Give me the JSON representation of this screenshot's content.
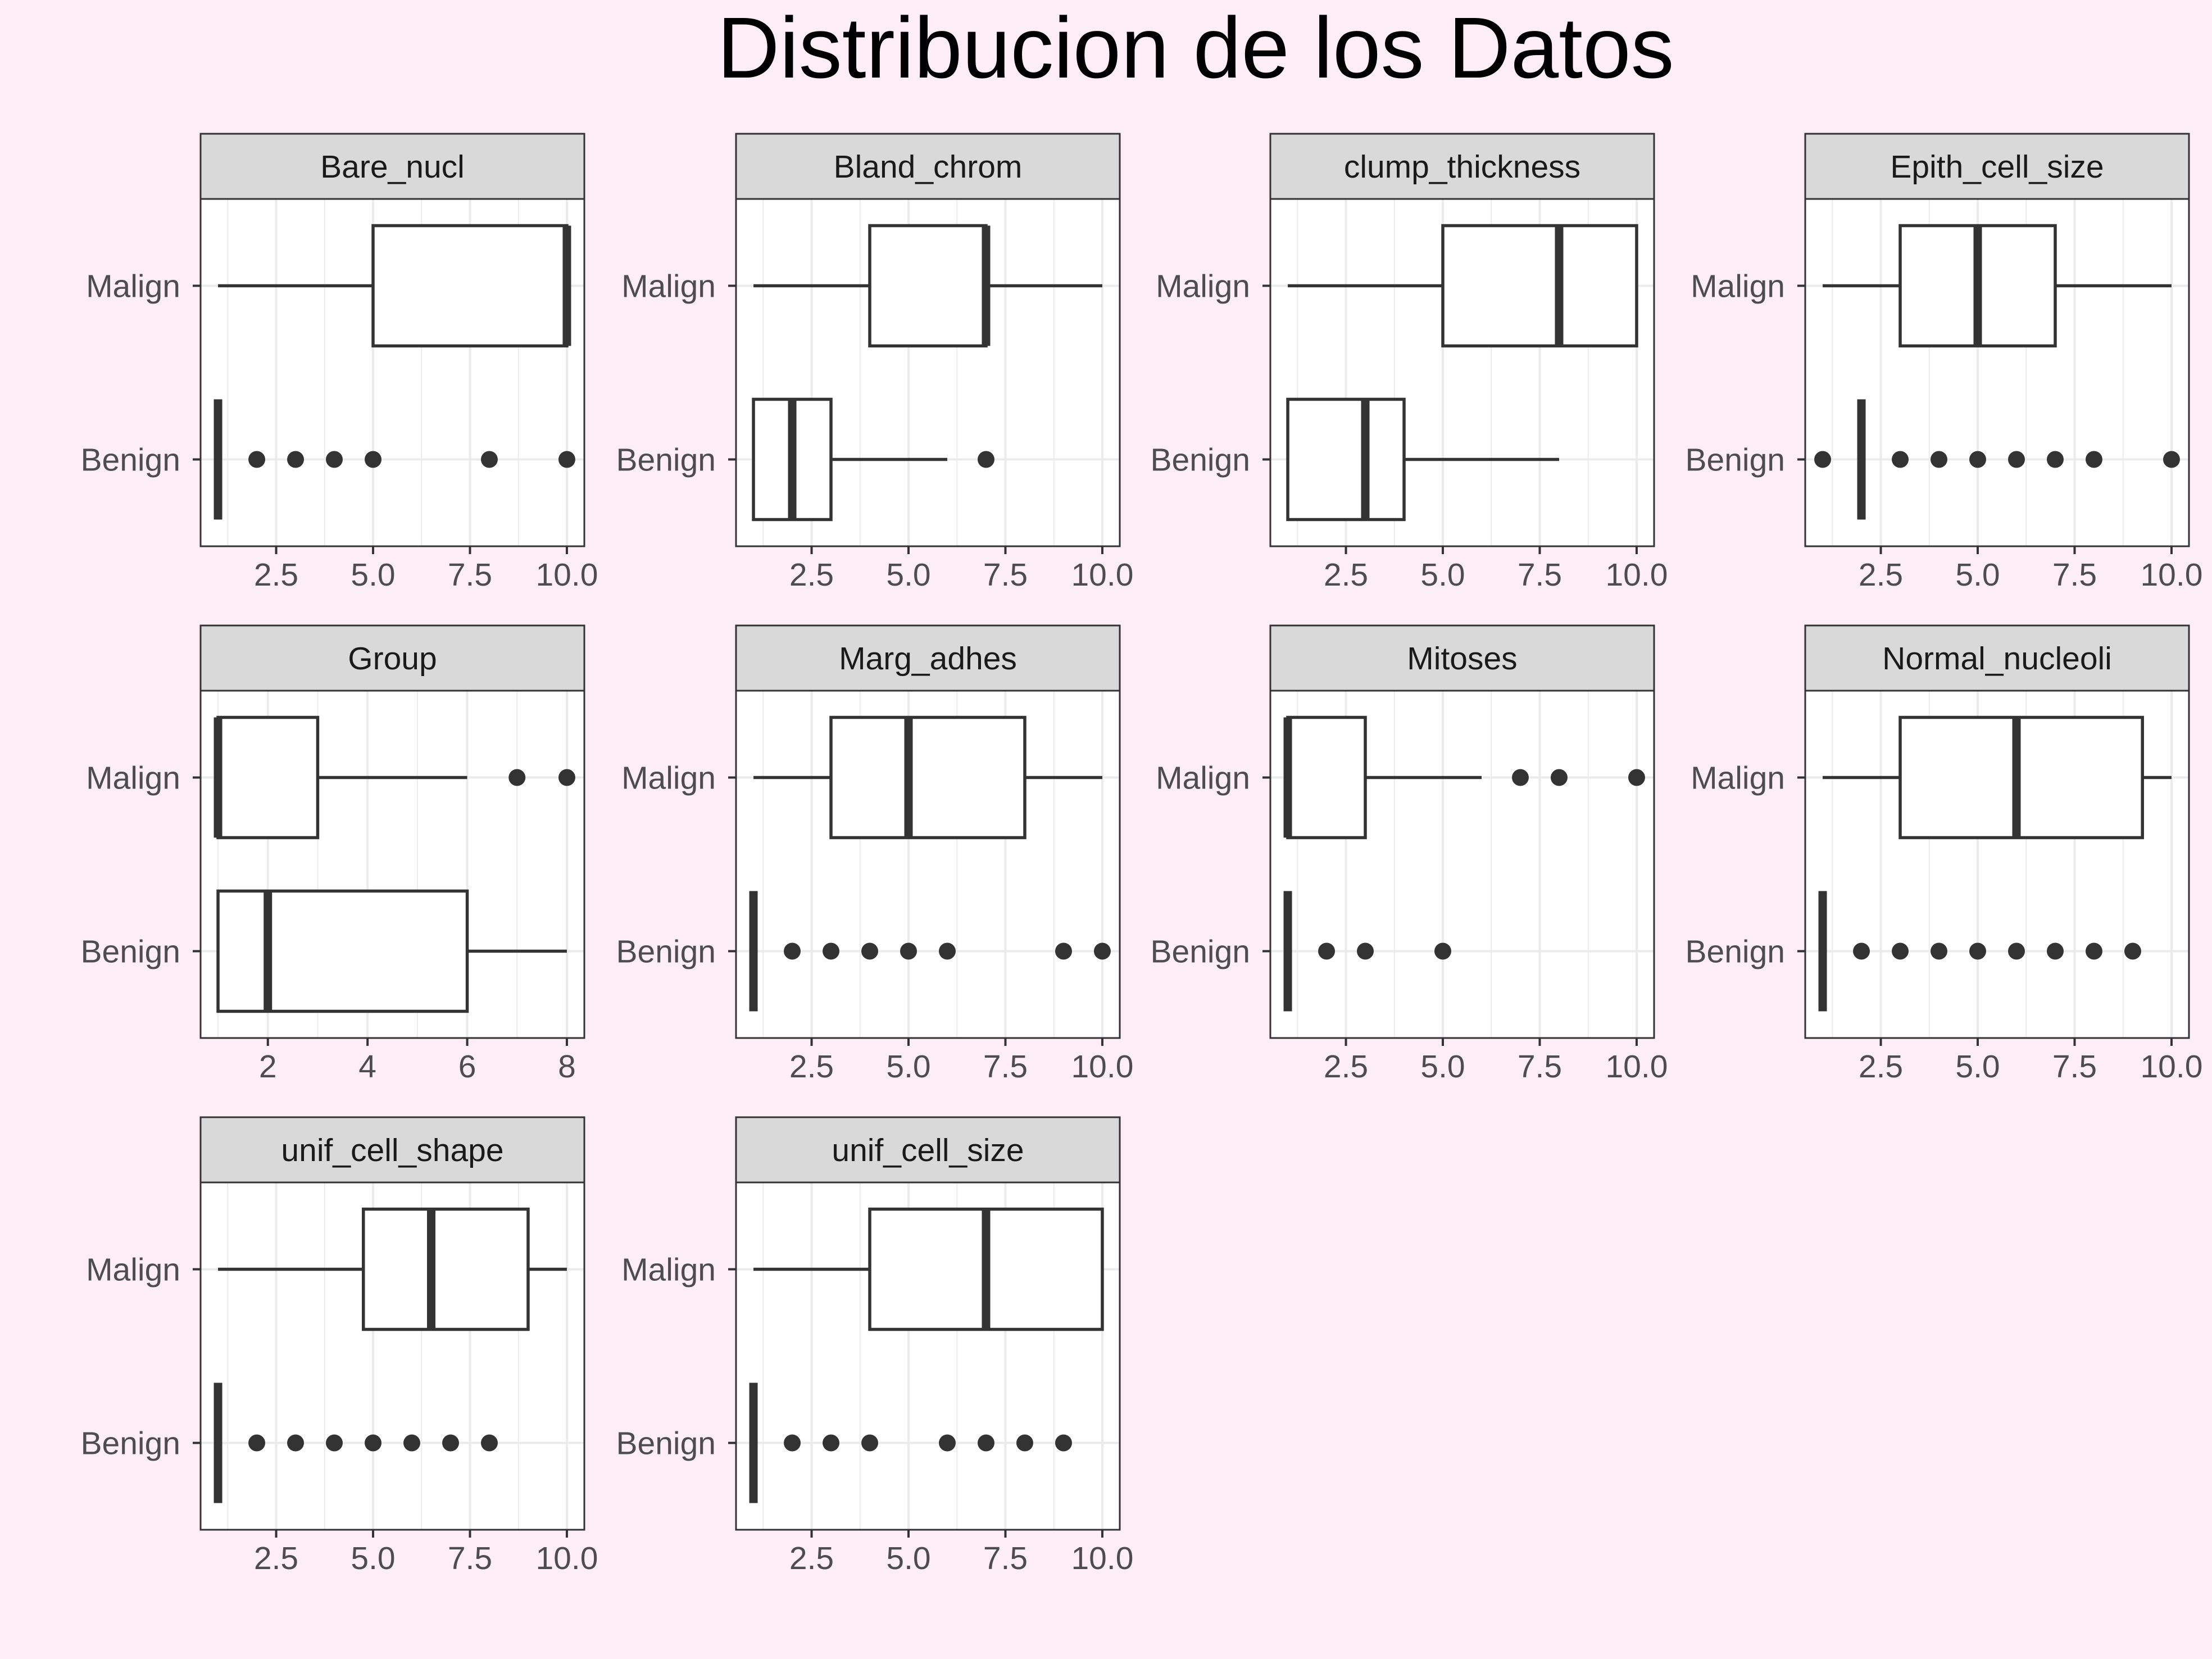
{
  "colors": {
    "background": "#fdeef5",
    "panel_background": "#ffffff",
    "strip_background": "#d9d9d9",
    "strip_border": "#333333",
    "panel_border": "#333333",
    "grid": "#ebebeb",
    "box_line": "#333333",
    "outlier": "#333333",
    "text": "#4d4d4d",
    "strip_text": "#1a1a1a",
    "title": "#000000"
  },
  "chart_data": {
    "type": "boxplot",
    "title": "Distribucion de los Datos",
    "layout": "facet grid, 4 columns x 3 rows, free x scales",
    "orientation": "horizontal",
    "categories": [
      "Malign",
      "Benign"
    ],
    "panels": [
      {
        "name": "Bare_nucl",
        "xlim": [
          0.55,
          10.45
        ],
        "xticks": [
          2.5,
          5.0,
          7.5,
          10.0
        ],
        "xtick_labels": [
          "2.5",
          "5.0",
          "7.5",
          "10.0"
        ],
        "boxes": [
          {
            "group": "Malign",
            "min": 1,
            "q1": 5,
            "median": 10,
            "q3": 10,
            "max": 10,
            "outliers": []
          },
          {
            "group": "Benign",
            "min": 1,
            "q1": 1,
            "median": 1,
            "q3": 1,
            "max": 1,
            "outliers": [
              2,
              3,
              4,
              5,
              8,
              10
            ]
          }
        ]
      },
      {
        "name": "Bland_chrom",
        "xlim": [
          0.55,
          10.45
        ],
        "xticks": [
          2.5,
          5.0,
          7.5,
          10.0
        ],
        "xtick_labels": [
          "2.5",
          "5.0",
          "7.5",
          "10.0"
        ],
        "boxes": [
          {
            "group": "Malign",
            "min": 1,
            "q1": 4,
            "median": 7,
            "q3": 7,
            "max": 10,
            "outliers": []
          },
          {
            "group": "Benign",
            "min": 1,
            "q1": 1,
            "median": 2,
            "q3": 3,
            "max": 6,
            "outliers": [
              7
            ]
          }
        ]
      },
      {
        "name": "clump_thickness",
        "xlim": [
          0.55,
          10.45
        ],
        "xticks": [
          2.5,
          5.0,
          7.5,
          10.0
        ],
        "xtick_labels": [
          "2.5",
          "5.0",
          "7.5",
          "10.0"
        ],
        "boxes": [
          {
            "group": "Malign",
            "min": 1,
            "q1": 5,
            "median": 8,
            "q3": 10,
            "max": 10,
            "outliers": []
          },
          {
            "group": "Benign",
            "min": 1,
            "q1": 1,
            "median": 3,
            "q3": 4,
            "max": 8,
            "outliers": []
          }
        ]
      },
      {
        "name": "Epith_cell_size",
        "xlim": [
          0.55,
          10.45
        ],
        "xticks": [
          2.5,
          5.0,
          7.5,
          10.0
        ],
        "xtick_labels": [
          "2.5",
          "5.0",
          "7.5",
          "10.0"
        ],
        "boxes": [
          {
            "group": "Malign",
            "min": 1,
            "q1": 3,
            "median": 5,
            "q3": 7,
            "max": 10,
            "outliers": []
          },
          {
            "group": "Benign",
            "min": 2,
            "q1": 2,
            "median": 2,
            "q3": 2,
            "max": 2,
            "outliers": [
              1,
              3,
              4,
              5,
              6,
              7,
              8,
              10
            ]
          }
        ]
      },
      {
        "name": "Group",
        "xlim": [
          0.65,
          8.35
        ],
        "xticks": [
          2,
          4,
          6,
          8
        ],
        "xtick_labels": [
          "2",
          "4",
          "6",
          "8"
        ],
        "boxes": [
          {
            "group": "Malign",
            "min": 1,
            "q1": 1,
            "median": 1,
            "q3": 3,
            "max": 6,
            "outliers": [
              7,
              8
            ]
          },
          {
            "group": "Benign",
            "min": 1,
            "q1": 1,
            "median": 2,
            "q3": 6,
            "max": 8,
            "outliers": []
          }
        ]
      },
      {
        "name": "Marg_adhes",
        "xlim": [
          0.55,
          10.45
        ],
        "xticks": [
          2.5,
          5.0,
          7.5,
          10.0
        ],
        "xtick_labels": [
          "2.5",
          "5.0",
          "7.5",
          "10.0"
        ],
        "boxes": [
          {
            "group": "Malign",
            "min": 1,
            "q1": 3,
            "median": 5,
            "q3": 8,
            "max": 10,
            "outliers": []
          },
          {
            "group": "Benign",
            "min": 1,
            "q1": 1,
            "median": 1,
            "q3": 1,
            "max": 1,
            "outliers": [
              2,
              3,
              4,
              5,
              6,
              9,
              10
            ]
          }
        ]
      },
      {
        "name": "Mitoses",
        "xlim": [
          0.55,
          10.45
        ],
        "xticks": [
          2.5,
          5.0,
          7.5,
          10.0
        ],
        "xtick_labels": [
          "2.5",
          "5.0",
          "7.5",
          "10.0"
        ],
        "boxes": [
          {
            "group": "Malign",
            "min": 1,
            "q1": 1,
            "median": 1,
            "q3": 3,
            "max": 6,
            "outliers": [
              7,
              8,
              10
            ]
          },
          {
            "group": "Benign",
            "min": 1,
            "q1": 1,
            "median": 1,
            "q3": 1,
            "max": 1,
            "outliers": [
              2,
              3,
              5
            ]
          }
        ]
      },
      {
        "name": "Normal_nucleoli",
        "xlim": [
          0.55,
          10.45
        ],
        "xticks": [
          2.5,
          5.0,
          7.5,
          10.0
        ],
        "xtick_labels": [
          "2.5",
          "5.0",
          "7.5",
          "10.0"
        ],
        "boxes": [
          {
            "group": "Malign",
            "min": 1,
            "q1": 3,
            "median": 6,
            "q3": 9.25,
            "max": 10,
            "outliers": []
          },
          {
            "group": "Benign",
            "min": 1,
            "q1": 1,
            "median": 1,
            "q3": 1,
            "max": 1,
            "outliers": [
              2,
              3,
              4,
              5,
              6,
              7,
              8,
              9
            ]
          }
        ]
      },
      {
        "name": "unif_cell_shape",
        "xlim": [
          0.55,
          10.45
        ],
        "xticks": [
          2.5,
          5.0,
          7.5,
          10.0
        ],
        "xtick_labels": [
          "2.5",
          "5.0",
          "7.5",
          "10.0"
        ],
        "boxes": [
          {
            "group": "Malign",
            "min": 1,
            "q1": 4.75,
            "median": 6.5,
            "q3": 9,
            "max": 10,
            "outliers": []
          },
          {
            "group": "Benign",
            "min": 1,
            "q1": 1,
            "median": 1,
            "q3": 1,
            "max": 1,
            "outliers": [
              2,
              3,
              4,
              5,
              6,
              7,
              8
            ]
          }
        ]
      },
      {
        "name": "unif_cell_size",
        "xlim": [
          0.55,
          10.45
        ],
        "xticks": [
          2.5,
          5.0,
          7.5,
          10.0
        ],
        "xtick_labels": [
          "2.5",
          "5.0",
          "7.5",
          "10.0"
        ],
        "boxes": [
          {
            "group": "Malign",
            "min": 1,
            "q1": 4,
            "median": 7,
            "q3": 10,
            "max": 10,
            "outliers": []
          },
          {
            "group": "Benign",
            "min": 1,
            "q1": 1,
            "median": 1,
            "q3": 1,
            "max": 1,
            "outliers": [
              2,
              3,
              4,
              6,
              7,
              8,
              9
            ]
          }
        ]
      }
    ]
  }
}
